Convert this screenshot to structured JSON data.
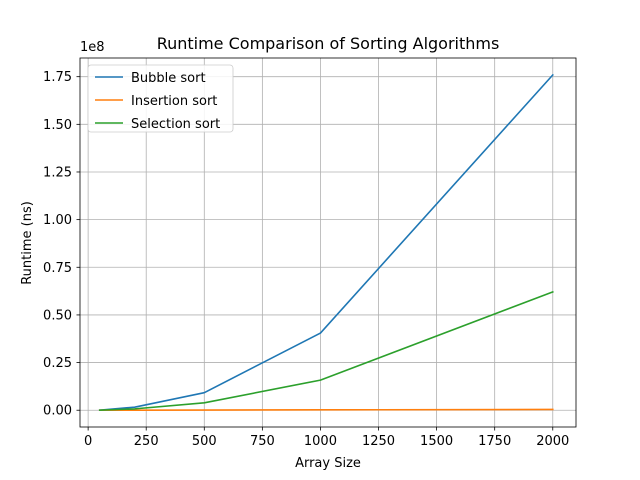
{
  "chart_data": {
    "type": "line",
    "title": "Runtime Comparison of Sorting Algorithms",
    "xlabel": "Array Size",
    "ylabel": "Runtime (ns)",
    "y_offset_text": "1e8",
    "xlim": [
      -35,
      2100
    ],
    "ylim": [
      -8800000,
      184800000
    ],
    "xticks": [
      0,
      250,
      500,
      750,
      1000,
      1250,
      1500,
      1750,
      2000
    ],
    "xtick_labels": [
      "0",
      "250",
      "500",
      "750",
      "1000",
      "1250",
      "1500",
      "1750",
      "2000"
    ],
    "yticks": [
      0,
      25000000,
      50000000,
      75000000,
      100000000,
      125000000,
      150000000,
      175000000
    ],
    "ytick_labels": [
      "0.00",
      "0.25",
      "0.50",
      "0.75",
      "1.00",
      "1.25",
      "1.50",
      "1.75"
    ],
    "grid": true,
    "legend_position": "upper-left",
    "x": [
      50,
      200,
      500,
      1000,
      2000
    ],
    "series": [
      {
        "name": "Bubble sort",
        "color": "#1f77b4",
        "values": [
          50000,
          1600000,
          9200000,
          40500000,
          175900000
        ]
      },
      {
        "name": "Insertion sort",
        "color": "#ff7f0e",
        "values": [
          1000,
          20000,
          100000,
          200000,
          400000
        ]
      },
      {
        "name": "Selection sort",
        "color": "#2ca02c",
        "values": [
          40000,
          700000,
          3900000,
          15800000,
          62100000
        ]
      }
    ]
  }
}
